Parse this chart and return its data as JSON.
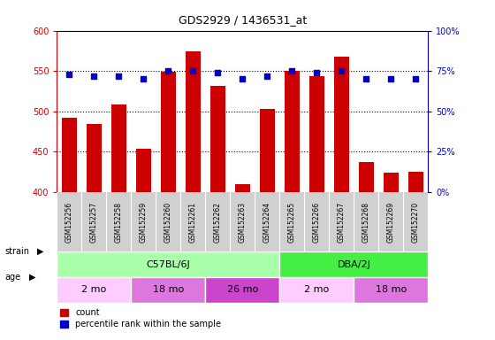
{
  "title": "GDS2929 / 1436531_at",
  "samples": [
    "GSM152256",
    "GSM152257",
    "GSM152258",
    "GSM152259",
    "GSM152260",
    "GSM152261",
    "GSM152262",
    "GSM152263",
    "GSM152264",
    "GSM152265",
    "GSM152266",
    "GSM152267",
    "GSM152268",
    "GSM152269",
    "GSM152270"
  ],
  "counts": [
    492,
    484,
    508,
    454,
    549,
    574,
    532,
    410,
    503,
    550,
    544,
    568,
    437,
    424,
    425
  ],
  "percentile_ranks": [
    73,
    72,
    72,
    70,
    75,
    75,
    74,
    70,
    72,
    75,
    74,
    75,
    70,
    70,
    70
  ],
  "ylim_left": [
    400,
    600
  ],
  "ylim_right": [
    0,
    100
  ],
  "yticks_left": [
    400,
    450,
    500,
    550,
    600
  ],
  "yticks_right": [
    0,
    25,
    50,
    75,
    100
  ],
  "bar_color": "#cc0000",
  "dot_color": "#0000cc",
  "bar_bottom": 400,
  "strain_groups": [
    {
      "label": "C57BL/6J",
      "start": 0,
      "end": 9,
      "color": "#aaffaa"
    },
    {
      "label": "DBA/2J",
      "start": 9,
      "end": 15,
      "color": "#44ee44"
    }
  ],
  "age_groups": [
    {
      "label": "2 mo",
      "start": 0,
      "end": 3,
      "color": "#ffccff"
    },
    {
      "label": "18 mo",
      "start": 3,
      "end": 6,
      "color": "#dd77dd"
    },
    {
      "label": "26 mo",
      "start": 6,
      "end": 9,
      "color": "#cc44cc"
    },
    {
      "label": "2 mo",
      "start": 9,
      "end": 12,
      "color": "#ffccff"
    },
    {
      "label": "18 mo",
      "start": 12,
      "end": 15,
      "color": "#dd77dd"
    }
  ],
  "tick_label_color_left": "#cc0000",
  "tick_label_color_right": "#0000cc",
  "sample_bg_color": "#d0d0d0"
}
